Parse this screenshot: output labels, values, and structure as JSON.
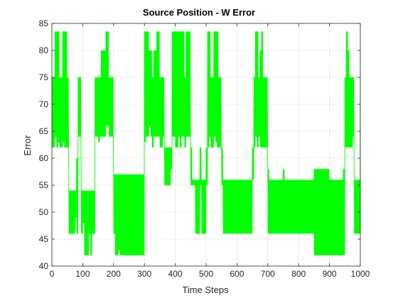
{
  "chart_data": {
    "type": "line",
    "title": "Source Position - W Error",
    "xlabel": "Time Steps",
    "ylabel": "Error",
    "xlim": [
      0,
      1000
    ],
    "ylim": [
      40,
      85
    ],
    "xticks": [
      0,
      100,
      200,
      300,
      400,
      500,
      600,
      700,
      800,
      900,
      1000
    ],
    "yticks": [
      40,
      45,
      50,
      55,
      60,
      65,
      70,
      75,
      80,
      85
    ],
    "grid": true,
    "legend": "none",
    "series": [
      {
        "color": "#00ff00",
        "levels_min": [
          62,
          64,
          66,
          67,
          75,
          80,
          83.5
        ],
        "x": [
          0,
          5,
          10,
          15,
          20,
          25,
          30,
          35,
          40,
          45,
          50,
          55,
          60,
          65,
          70,
          75,
          80,
          85,
          90,
          95,
          100,
          105,
          110,
          115,
          120,
          125,
          130,
          135,
          140,
          145,
          150,
          155,
          160,
          165,
          170,
          175,
          180,
          185,
          190,
          195,
          200,
          205,
          210,
          215,
          220,
          225,
          230,
          235,
          240,
          245,
          250,
          255,
          260,
          265,
          270,
          275,
          280,
          285,
          290,
          295,
          300,
          305,
          310,
          315,
          320,
          325,
          330,
          335,
          340,
          345,
          350,
          355,
          360,
          365,
          370,
          375,
          380,
          385,
          390,
          395,
          400,
          405,
          410,
          415,
          420,
          425,
          430,
          435,
          440,
          445,
          450,
          455,
          460,
          465,
          470,
          475,
          480,
          485,
          490,
          495,
          500,
          505,
          510,
          515,
          520,
          525,
          530,
          535,
          540,
          545,
          550,
          555,
          560,
          565,
          570,
          575,
          580,
          585,
          590,
          595,
          600,
          605,
          610,
          615,
          620,
          625,
          630,
          635,
          640,
          645,
          650,
          655,
          660,
          665,
          670,
          675,
          680,
          685,
          690,
          695,
          700,
          705,
          710,
          715,
          720,
          725,
          730,
          735,
          740,
          745,
          750,
          755,
          760,
          765,
          770,
          775,
          780,
          785,
          790,
          795,
          800,
          805,
          810,
          815,
          820,
          825,
          830,
          835,
          840,
          845,
          850,
          855,
          860,
          865,
          870,
          875,
          880,
          885,
          890,
          895,
          900,
          905,
          910,
          915,
          920,
          925,
          930,
          935,
          940,
          945,
          950,
          955,
          960,
          965,
          970,
          975,
          980,
          985,
          990,
          995,
          1000
        ],
        "ymin": [
          62,
          62,
          64,
          62,
          63,
          62,
          62,
          63,
          62,
          62,
          62,
          46,
          46,
          46,
          46,
          49,
          46,
          64,
          64,
          46,
          48,
          42,
          42,
          42,
          46,
          42,
          46,
          46,
          64,
          64,
          63,
          64,
          64,
          64,
          64,
          66,
          66,
          64,
          64,
          64,
          46,
          42,
          42,
          43,
          42,
          42,
          42,
          42,
          42,
          42,
          42,
          42,
          42,
          42,
          42,
          42,
          42,
          42,
          42,
          42,
          63,
          64,
          64,
          66,
          64,
          62,
          64,
          64,
          64,
          64,
          62,
          62,
          64,
          55,
          55,
          55,
          55,
          58,
          64,
          64,
          62,
          62,
          64,
          62,
          64,
          64,
          62,
          64,
          64,
          64,
          55,
          55,
          55,
          46,
          46,
          46,
          55,
          46,
          46,
          46,
          55,
          62,
          64,
          62,
          62,
          64,
          63,
          62,
          62,
          62,
          55,
          46,
          46,
          46,
          46,
          46,
          46,
          46,
          46,
          46,
          46,
          46,
          46,
          46,
          46,
          46,
          46,
          46,
          46,
          46,
          56,
          62,
          64,
          62,
          64,
          62,
          62,
          62,
          62,
          62,
          46,
          46,
          46,
          46,
          46,
          46,
          46,
          46,
          46,
          46,
          46,
          46,
          46,
          46,
          46,
          46,
          46,
          46,
          46,
          46,
          46,
          46,
          46,
          46,
          46,
          46,
          46,
          46,
          46,
          46,
          42,
          42,
          42,
          42,
          42,
          42,
          42,
          42,
          42,
          42,
          42,
          42,
          42,
          42,
          42,
          42,
          42,
          42,
          42,
          42,
          62,
          62,
          62,
          62,
          62,
          64,
          46,
          46,
          46,
          46,
          46
        ],
        "ymax": [
          75,
          75,
          83.5,
          83.5,
          83.5,
          75,
          75,
          83.5,
          83.5,
          83.5,
          75,
          54,
          54,
          54,
          54,
          54,
          60,
          75,
          75,
          54,
          54,
          54,
          54,
          54,
          54,
          54,
          54,
          54,
          75,
          75,
          75,
          75,
          80,
          80,
          80,
          83.5,
          83.5,
          75,
          75,
          75,
          57,
          57,
          57,
          57,
          57,
          57,
          57,
          57,
          57,
          57,
          57,
          57,
          57,
          57,
          57,
          57,
          57,
          57,
          57,
          57,
          83.5,
          83.5,
          83.5,
          80,
          80,
          75,
          80,
          80,
          83.5,
          83.5,
          75,
          75,
          75,
          62,
          62,
          62,
          62,
          62,
          83.5,
          83.5,
          83.5,
          83.5,
          83.5,
          83.5,
          83.5,
          83.5,
          75,
          83.5,
          83.5,
          83.5,
          62,
          56,
          56,
          56,
          56,
          56,
          62,
          56,
          56,
          56,
          62,
          83.5,
          83.5,
          75,
          75,
          83.5,
          83.5,
          83.5,
          75,
          75,
          62,
          56,
          56,
          56,
          56,
          56,
          56,
          56,
          56,
          56,
          56,
          56,
          56,
          56,
          56,
          56,
          56,
          56,
          56,
          56,
          62,
          75,
          83.5,
          83.5,
          75,
          80,
          83.5,
          75,
          75,
          75,
          58,
          56,
          56,
          56,
          56,
          56,
          56,
          56,
          56,
          56,
          58,
          56,
          56,
          56,
          56,
          56,
          56,
          56,
          56,
          56,
          56,
          56,
          56,
          56,
          56,
          56,
          56,
          56,
          56,
          56,
          58,
          58,
          58,
          58,
          58,
          58,
          58,
          58,
          58,
          58,
          56,
          56,
          56,
          56,
          56,
          56,
          56,
          56,
          56,
          58,
          75,
          83.5,
          80,
          75,
          75,
          75,
          56,
          56,
          56,
          56,
          80
        ]
      }
    ]
  }
}
